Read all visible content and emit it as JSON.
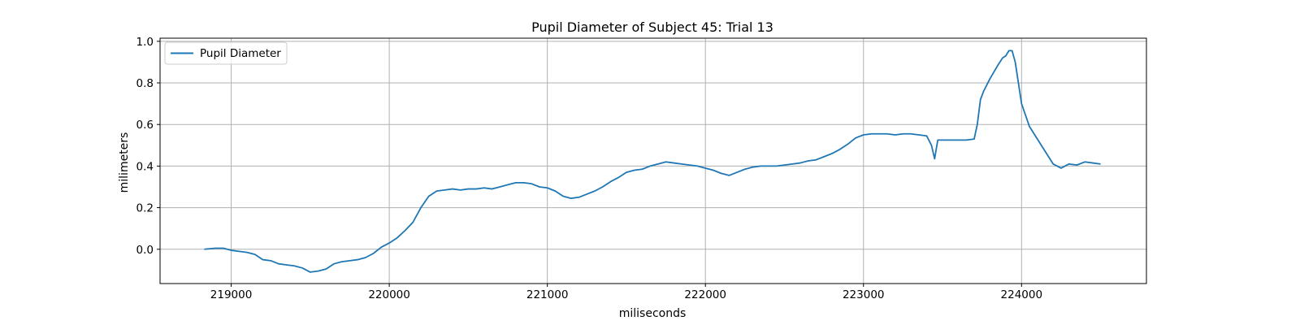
{
  "chart_data": {
    "type": "line",
    "title": "Pupil Diameter of Subject 45: Trial 13",
    "xlabel": "miliseconds",
    "ylabel": "milimeters",
    "xlim": [
      218550,
      224790
    ],
    "ylim": [
      -0.165,
      1.015
    ],
    "xticks": [
      219000,
      220000,
      221000,
      222000,
      223000,
      224000
    ],
    "xtick_labels": [
      "219000",
      "220000",
      "221000",
      "222000",
      "223000",
      "224000"
    ],
    "yticks": [
      0.0,
      0.2,
      0.4,
      0.6,
      0.8,
      1.0
    ],
    "ytick_labels": [
      "0.0",
      "0.2",
      "0.4",
      "0.6",
      "0.8",
      "1.0"
    ],
    "grid": true,
    "legend_position": "top-left",
    "series": [
      {
        "name": "Pupil Diameter",
        "color": "#1f77b4",
        "x": [
          218830,
          218900,
          218950,
          219000,
          219050,
          219100,
          219150,
          219200,
          219250,
          219300,
          219350,
          219400,
          219450,
          219500,
          219550,
          219600,
          219650,
          219700,
          219750,
          219800,
          219850,
          219900,
          219950,
          220000,
          220050,
          220100,
          220150,
          220200,
          220250,
          220300,
          220350,
          220400,
          220450,
          220500,
          220550,
          220600,
          220650,
          220700,
          220750,
          220800,
          220850,
          220900,
          220950,
          221000,
          221050,
          221100,
          221150,
          221200,
          221250,
          221300,
          221350,
          221400,
          221450,
          221500,
          221550,
          221600,
          221650,
          221700,
          221750,
          221800,
          221850,
          221900,
          221950,
          222000,
          222050,
          222100,
          222150,
          222200,
          222250,
          222300,
          222350,
          222400,
          222450,
          222500,
          222550,
          222600,
          222650,
          222700,
          222750,
          222800,
          222850,
          222900,
          222950,
          223000,
          223050,
          223100,
          223150,
          223200,
          223250,
          223300,
          223350,
          223400,
          223430,
          223450,
          223470,
          223500,
          223550,
          223600,
          223650,
          223700,
          223720,
          223740,
          223760,
          223800,
          223850,
          223880,
          223900,
          223920,
          223940,
          223960,
          223980,
          224000,
          224050,
          224100,
          224150,
          224200,
          224250,
          224300,
          224350,
          224400,
          224450,
          224500
        ],
        "y": [
          0.0,
          0.005,
          0.005,
          -0.005,
          -0.01,
          -0.015,
          -0.025,
          -0.05,
          -0.055,
          -0.07,
          -0.075,
          -0.08,
          -0.09,
          -0.11,
          -0.105,
          -0.095,
          -0.07,
          -0.06,
          -0.055,
          -0.05,
          -0.04,
          -0.02,
          0.01,
          0.03,
          0.055,
          0.09,
          0.13,
          0.2,
          0.255,
          0.28,
          0.285,
          0.29,
          0.285,
          0.29,
          0.29,
          0.295,
          0.29,
          0.3,
          0.31,
          0.32,
          0.32,
          0.315,
          0.3,
          0.295,
          0.28,
          0.255,
          0.245,
          0.25,
          0.265,
          0.28,
          0.3,
          0.325,
          0.345,
          0.37,
          0.38,
          0.385,
          0.4,
          0.41,
          0.42,
          0.415,
          0.41,
          0.405,
          0.4,
          0.39,
          0.38,
          0.365,
          0.355,
          0.37,
          0.385,
          0.395,
          0.4,
          0.4,
          0.4,
          0.405,
          0.41,
          0.415,
          0.425,
          0.43,
          0.445,
          0.46,
          0.48,
          0.505,
          0.535,
          0.55,
          0.555,
          0.555,
          0.555,
          0.55,
          0.555,
          0.555,
          0.55,
          0.545,
          0.5,
          0.435,
          0.525,
          0.525,
          0.525,
          0.525,
          0.525,
          0.53,
          0.6,
          0.72,
          0.76,
          0.82,
          0.885,
          0.92,
          0.93,
          0.955,
          0.955,
          0.9,
          0.8,
          0.7,
          0.59,
          0.53,
          0.47,
          0.41,
          0.39,
          0.41,
          0.405,
          0.42,
          0.415,
          0.41
        ]
      }
    ]
  }
}
